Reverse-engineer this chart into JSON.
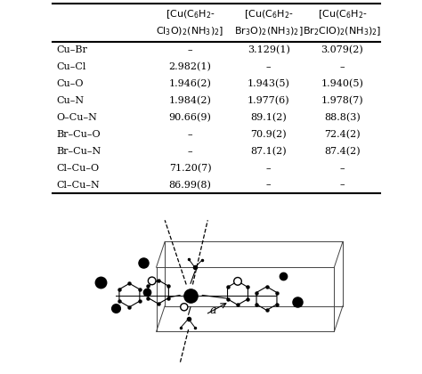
{
  "col_header_line1": [
    "[Cu(C₆H₂-",
    "[Cu(C₆H₂-",
    "[Cu(C₆H₂-"
  ],
  "col_header_line2": [
    "Cl₃O)₂(NH₃)₂]",
    "Br₃O)₂(NH₃)₂]",
    "Br₂ClO)₂(NH₃)₂]"
  ],
  "row_labels": [
    "Cu–Br",
    "Cu–Cl",
    "Cu–O",
    "Cu–N",
    "O–Cu–N",
    "Br–Cu–O",
    "Br–Cu–N",
    "Cl–Cu–O",
    "Cl–Cu–N"
  ],
  "col1": [
    "–",
    "2.982(1)",
    "1.946(2)",
    "1.984(2)",
    "90.66(9)",
    "–",
    "–",
    "71.20(7)",
    "86.99(8)"
  ],
  "col2": [
    "3.129(1)",
    "–",
    "1.943(5)",
    "1.977(6)",
    "89.1(2)",
    "70.9(2)",
    "87.1(2)",
    "–",
    "–"
  ],
  "col3": [
    "3.079(2)",
    "–",
    "1.940(5)",
    "1.978(7)",
    "88.8(3)",
    "72.4(2)",
    "87.4(2)",
    "–",
    "–"
  ],
  "bg_color": "#ffffff",
  "text_color": "#000000",
  "font_size": 8.0,
  "header_font_size": 8.0
}
